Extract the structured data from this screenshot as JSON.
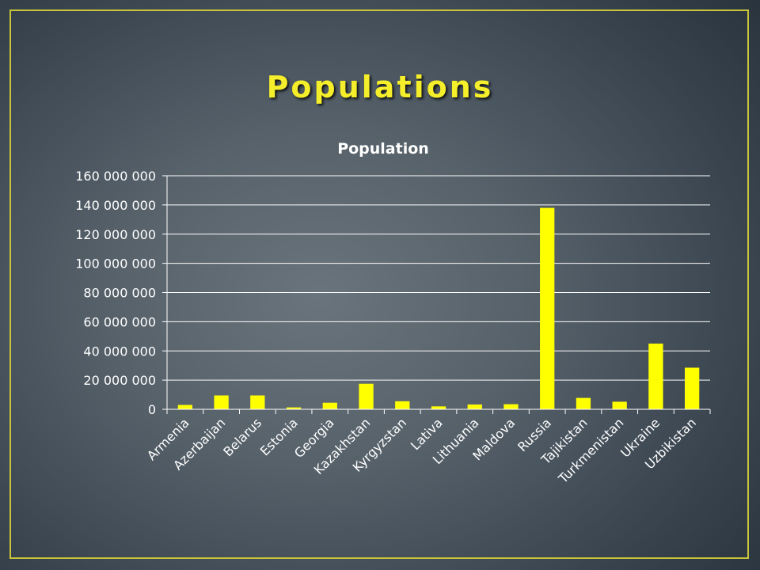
{
  "slide": {
    "title": "Populations"
  },
  "colors": {
    "bar": "#ffff00",
    "frame": "#c9c43a",
    "title": "#f5ee2a",
    "text": "#ffffff",
    "grid": "#ffffff"
  },
  "chart_data": {
    "type": "bar",
    "title": "Population",
    "xlabel": "",
    "ylabel": "",
    "ylim": [
      0,
      160000000
    ],
    "yticks": [
      0,
      20000000,
      40000000,
      60000000,
      80000000,
      100000000,
      120000000,
      140000000,
      160000000
    ],
    "ytick_labels": [
      "0",
      "20 000 000",
      "40 000 000",
      "60 000 000",
      "80 000 000",
      "100 000 000",
      "120 000 000",
      "140 000 000",
      "160 000 000"
    ],
    "grid": true,
    "legend": "none",
    "categories": [
      "Armenia",
      "Azerbaijan",
      "Belarus",
      "Estonia",
      "Georgia",
      "Kazakhstan",
      "Kyrgyzstan",
      "Lativa",
      "Lithuania",
      "Maldova",
      "Russia",
      "Tajikistan",
      "Turkmenistan",
      "Ukraine",
      "Uzbikistan"
    ],
    "values": [
      3000000,
      9500000,
      9500000,
      1300000,
      4500000,
      17500000,
      5500000,
      2000000,
      3300000,
      3500000,
      138000000,
      7800000,
      5200000,
      45000000,
      28500000
    ]
  }
}
